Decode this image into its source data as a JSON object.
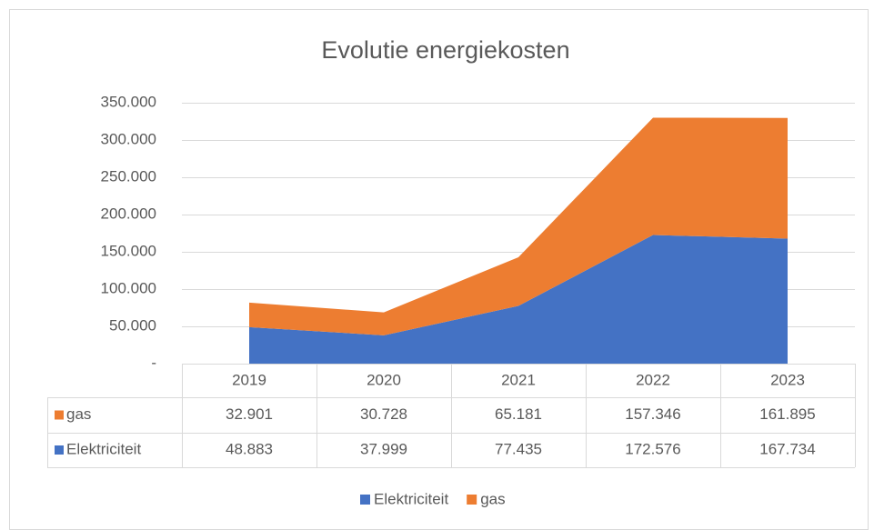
{
  "chart_data": {
    "type": "area",
    "stacked": true,
    "title": "Evolutie energiekosten",
    "categories": [
      "2019",
      "2020",
      "2021",
      "2022",
      "2023"
    ],
    "series": [
      {
        "name": "Elektriciteit",
        "color": "#4472c4",
        "values": [
          48883,
          37999,
          77435,
          172576,
          167734
        ],
        "value_labels": [
          "48.883",
          "37.999",
          "77.435",
          "172.576",
          "167.734"
        ]
      },
      {
        "name": "gas",
        "color": "#ed7d31",
        "values": [
          32901,
          30728,
          65181,
          157346,
          161895
        ],
        "value_labels": [
          "32.901",
          "30.728",
          "65.181",
          "157.346",
          "161.895"
        ]
      }
    ],
    "ylim": [
      0,
      350000
    ],
    "yticks": [
      {
        "value": 0,
        "label": "-"
      },
      {
        "value": 50000,
        "label": "50.000"
      },
      {
        "value": 100000,
        "label": "100.000"
      },
      {
        "value": 150000,
        "label": "150.000"
      },
      {
        "value": 200000,
        "label": "200.000"
      },
      {
        "value": 250000,
        "label": "250.000"
      },
      {
        "value": 300000,
        "label": "300.000"
      },
      {
        "value": 350000,
        "label": "350.000"
      }
    ],
    "grid": true,
    "legend": "bottom",
    "data_table": true
  }
}
